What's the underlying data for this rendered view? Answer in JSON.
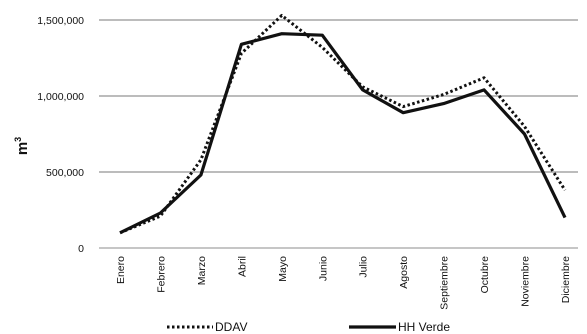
{
  "chart_data": {
    "type": "line",
    "ylabel": "m",
    "ylabel_superscript": "3",
    "ylim": [
      0,
      1500000
    ],
    "yticks": [
      0,
      500000,
      1000000,
      1500000
    ],
    "ytick_labels": [
      "0",
      "500,000",
      "1,000,000",
      "1,500,000"
    ],
    "grid": "horizontal",
    "legend_position": "bottom",
    "categories": [
      "Enero",
      "Febrero",
      "Marzo",
      "Abril",
      "Mayo",
      "Junio",
      "Julio",
      "Agosto",
      "Septiembre",
      "Octubre",
      "Noviembre",
      "Diciembre"
    ],
    "series": [
      {
        "name": "DDAV",
        "style": "dotted",
        "color": "#111111",
        "values": [
          100000,
          210000,
          580000,
          1280000,
          1530000,
          1320000,
          1060000,
          930000,
          1010000,
          1120000,
          800000,
          380000
        ]
      },
      {
        "name": "HH Verde",
        "style": "solid",
        "color": "#111111",
        "values": [
          100000,
          230000,
          480000,
          1340000,
          1410000,
          1400000,
          1040000,
          890000,
          950000,
          1040000,
          750000,
          200000
        ]
      }
    ]
  },
  "colors": {
    "grid": "#a6a6a6",
    "axis": "#8c8c8c",
    "series": "#111111"
  }
}
